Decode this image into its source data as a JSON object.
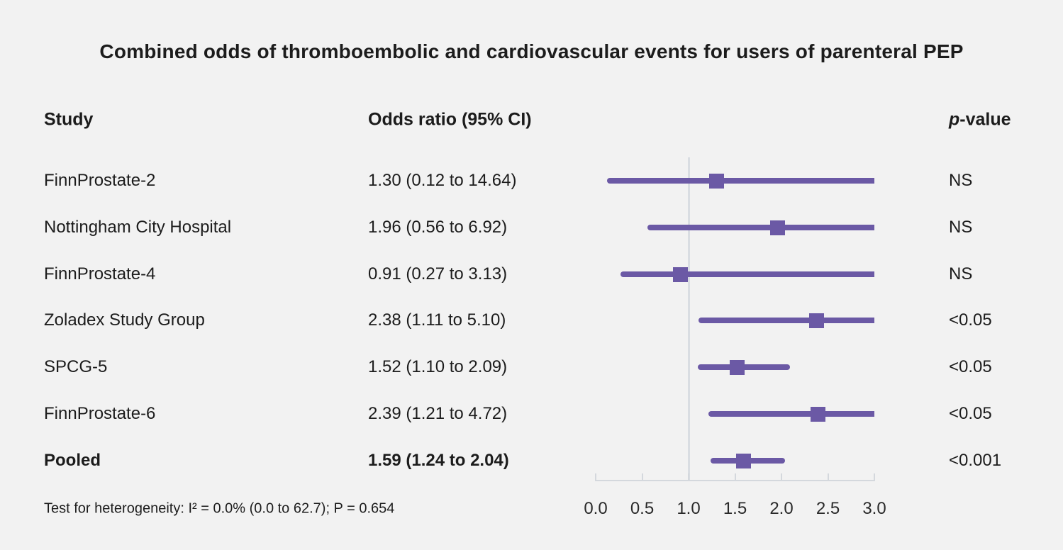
{
  "title": "Combined odds of thromboembolic and cardiovascular events for users of parenteral PEP",
  "columns": {
    "study": "Study",
    "odds_ratio": "Odds ratio (95% CI)",
    "p_italic": "p",
    "p_rest": "-value"
  },
  "footnote": "Test for heterogeneity: I² = 0.0% (0.0 to 62.7); P = 0.654",
  "colors": {
    "background": "#f2f2f2",
    "purple": "#6b59a5",
    "axis": "#d4d8dd",
    "reference_line": "#d9dde2",
    "text": "#1c1c1c"
  },
  "chart_data": {
    "type": "forest",
    "title": "Combined odds of thromboembolic and cardiovascular events for users of parenteral PEP",
    "xlabel": "",
    "xlim": [
      0.0,
      3.0
    ],
    "x_ticks": [
      {
        "value": 0.0,
        "label": "0.0"
      },
      {
        "value": 0.5,
        "label": "0.5"
      },
      {
        "value": 1.0,
        "label": "1.0"
      },
      {
        "value": 1.5,
        "label": "1.5"
      },
      {
        "value": 2.0,
        "label": "2.0"
      },
      {
        "value": 2.5,
        "label": "2.5"
      },
      {
        "value": 3.0,
        "label": "3.0"
      }
    ],
    "reference_value": 1.0,
    "ci_clip_max": 3.0,
    "rows": [
      {
        "study": "FinnProstate-2",
        "or": 1.3,
        "ci_lo": 0.12,
        "ci_hi": 14.64,
        "or_label": "1.30 (0.12 to 14.64)",
        "p": "NS",
        "bold": false
      },
      {
        "study": "Nottingham City Hospital",
        "or": 1.96,
        "ci_lo": 0.56,
        "ci_hi": 6.92,
        "or_label": "1.96 (0.56 to 6.92)",
        "p": "NS",
        "bold": false
      },
      {
        "study": "FinnProstate-4",
        "or": 0.91,
        "ci_lo": 0.27,
        "ci_hi": 3.13,
        "or_label": "0.91 (0.27 to 3.13)",
        "p": "NS",
        "bold": false
      },
      {
        "study": "Zoladex Study Group",
        "or": 2.38,
        "ci_lo": 1.11,
        "ci_hi": 5.1,
        "or_label": "2.38 (1.11 to 5.10)",
        "p": "<0.05",
        "bold": false
      },
      {
        "study": "SPCG-5",
        "or": 1.52,
        "ci_lo": 1.1,
        "ci_hi": 2.09,
        "or_label": "1.52 (1.10 to 2.09)",
        "p": "<0.05",
        "bold": false
      },
      {
        "study": "FinnProstate-6",
        "or": 2.39,
        "ci_lo": 1.21,
        "ci_hi": 4.72,
        "or_label": "2.39 (1.21 to 4.72)",
        "p": "<0.05",
        "bold": false
      },
      {
        "study": "Pooled",
        "or": 1.59,
        "ci_lo": 1.24,
        "ci_hi": 2.04,
        "or_label": "1.59 (1.24 to 2.04)",
        "p": "<0.001",
        "bold": true
      }
    ],
    "heterogeneity": "Test for heterogeneity: I² = 0.0% (0.0 to 62.7); P = 0.654"
  }
}
